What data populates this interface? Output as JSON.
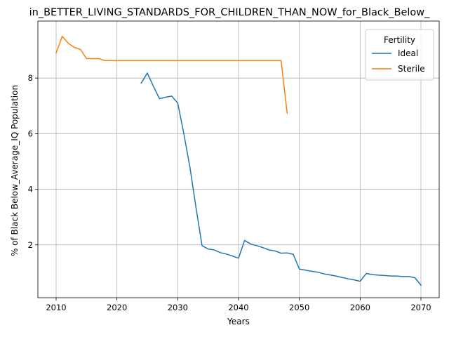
{
  "chart_data": {
    "type": "line",
    "title": "in_BETTER_LIVING_STANDARDS_FOR_CHILDREN_THAN_NOW_for_Black_Below_",
    "xlabel": "Years",
    "ylabel": "% of Black Below_Average_IQ Population",
    "xlim": [
      2007,
      2073
    ],
    "ylim": [
      0.1,
      10.05
    ],
    "xticks": [
      2010,
      2020,
      2030,
      2040,
      2050,
      2060,
      2070
    ],
    "yticks": [
      2,
      4,
      6,
      8
    ],
    "grid": true,
    "legend": {
      "title": "Fertility",
      "placement": "top-right"
    },
    "series": [
      {
        "name": "Ideal",
        "color": "#1f77b4",
        "points": [
          [
            2024,
            7.82
          ],
          [
            2025,
            8.18
          ],
          [
            2026,
            7.7
          ],
          [
            2027,
            7.26
          ],
          [
            2028,
            7.31
          ],
          [
            2029,
            7.35
          ],
          [
            2030,
            7.1
          ],
          [
            2031,
            6.0
          ],
          [
            2032,
            4.8
          ],
          [
            2033,
            3.35
          ],
          [
            2034,
            1.97
          ],
          [
            2035,
            1.85
          ],
          [
            2036,
            1.82
          ],
          [
            2037,
            1.72
          ],
          [
            2038,
            1.67
          ],
          [
            2039,
            1.6
          ],
          [
            2040,
            1.52
          ],
          [
            2041,
            2.16
          ],
          [
            2042,
            2.03
          ],
          [
            2043,
            1.97
          ],
          [
            2044,
            1.9
          ],
          [
            2045,
            1.82
          ],
          [
            2046,
            1.78
          ],
          [
            2047,
            1.7
          ],
          [
            2048,
            1.71
          ],
          [
            2049,
            1.66
          ],
          [
            2050,
            1.13
          ],
          [
            2051,
            1.09
          ],
          [
            2052,
            1.05
          ],
          [
            2053,
            1.02
          ],
          [
            2054,
            0.96
          ],
          [
            2055,
            0.92
          ],
          [
            2056,
            0.88
          ],
          [
            2057,
            0.83
          ],
          [
            2058,
            0.78
          ],
          [
            2059,
            0.74
          ],
          [
            2060,
            0.69
          ],
          [
            2061,
            0.97
          ],
          [
            2062,
            0.93
          ],
          [
            2063,
            0.91
          ],
          [
            2064,
            0.9
          ],
          [
            2065,
            0.88
          ],
          [
            2066,
            0.88
          ],
          [
            2067,
            0.86
          ],
          [
            2068,
            0.86
          ],
          [
            2069,
            0.82
          ],
          [
            2070,
            0.55
          ]
        ]
      },
      {
        "name": "Sterile",
        "color": "#ff7f0e",
        "points": [
          [
            2010,
            8.9
          ],
          [
            2011,
            9.5
          ],
          [
            2012,
            9.25
          ],
          [
            2013,
            9.1
          ],
          [
            2014,
            9.03
          ],
          [
            2015,
            8.7
          ],
          [
            2016,
            8.7
          ],
          [
            2017,
            8.7
          ],
          [
            2018,
            8.63
          ],
          [
            2019,
            8.63
          ],
          [
            2020,
            8.63
          ],
          [
            2021,
            8.63
          ],
          [
            2022,
            8.63
          ],
          [
            2023,
            8.63
          ],
          [
            2024,
            8.63
          ],
          [
            2025,
            8.63
          ],
          [
            2026,
            8.63
          ],
          [
            2027,
            8.63
          ],
          [
            2028,
            8.63
          ],
          [
            2029,
            8.63
          ],
          [
            2030,
            8.63
          ],
          [
            2031,
            8.63
          ],
          [
            2032,
            8.63
          ],
          [
            2033,
            8.63
          ],
          [
            2034,
            8.63
          ],
          [
            2035,
            8.63
          ],
          [
            2036,
            8.63
          ],
          [
            2037,
            8.63
          ],
          [
            2038,
            8.63
          ],
          [
            2039,
            8.63
          ],
          [
            2040,
            8.63
          ],
          [
            2041,
            8.63
          ],
          [
            2042,
            8.63
          ],
          [
            2043,
            8.63
          ],
          [
            2044,
            8.63
          ],
          [
            2045,
            8.63
          ],
          [
            2046,
            8.63
          ],
          [
            2047,
            8.63
          ],
          [
            2048,
            6.73
          ]
        ]
      }
    ]
  }
}
